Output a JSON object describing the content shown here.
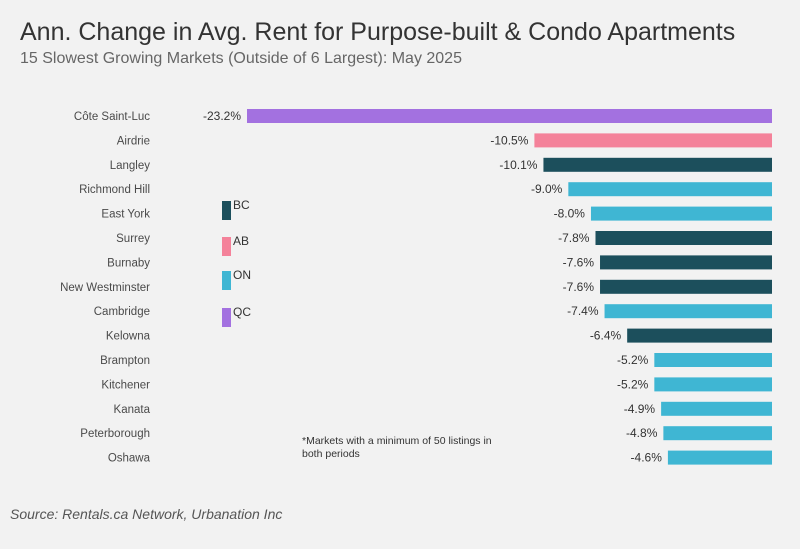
{
  "chart_data": {
    "type": "bar",
    "orientation": "horizontal",
    "title": "Ann. Change in Avg. Rent for Purpose-built & Condo Apartments",
    "subtitle": "15 Slowest Growing Markets (Outside of 6 Largest): May 2025",
    "categories": [
      "Côte Saint-Luc",
      "Airdrie",
      "Langley",
      "Richmond Hill",
      "East York",
      "Surrey",
      "Burnaby",
      "New Westminster",
      "Cambridge",
      "Kelowna",
      "Brampton",
      "Kitchener",
      "Kanata",
      "Peterborough",
      "Oshawa"
    ],
    "values": [
      -23.2,
      -10.5,
      -10.1,
      -9.0,
      -8.0,
      -7.8,
      -7.6,
      -7.6,
      -7.4,
      -6.4,
      -5.2,
      -5.2,
      -4.9,
      -4.8,
      -4.6
    ],
    "value_labels": [
      "-23.2%",
      "-10.5%",
      "-10.1%",
      "-9.0%",
      "-8.0%",
      "-7.8%",
      "-7.6%",
      "-7.6%",
      "-7.4%",
      "-6.4%",
      "-5.2%",
      "-5.2%",
      "-4.9%",
      "-4.8%",
      "-4.6%"
    ],
    "provinces": [
      "QC",
      "AB",
      "BC",
      "ON",
      "ON",
      "BC",
      "BC",
      "BC",
      "ON",
      "BC",
      "ON",
      "ON",
      "ON",
      "ON",
      "ON"
    ],
    "xlim": [
      -23.2,
      0
    ],
    "legend": [
      {
        "label": "BC",
        "color": "#1c4f5c"
      },
      {
        "label": "AB",
        "color": "#f4829a"
      },
      {
        "label": "ON",
        "color": "#3fb6d3"
      },
      {
        "label": "QC",
        "color": "#a371e0"
      }
    ],
    "legend_position": "left",
    "note_lines": [
      "*Markets with a minimum of 50 listings in",
      "both periods"
    ]
  },
  "source": "Source: Rentals.ca Network, Urbanation Inc"
}
